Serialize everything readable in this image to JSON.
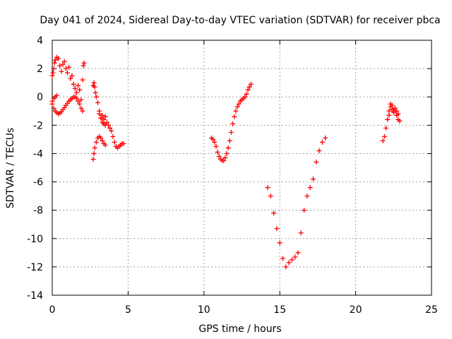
{
  "chart_data": {
    "type": "scatter",
    "title": "Day 041 of 2024, Sidereal Day-to-day VTEC variation (SDTVAR) for receiver pbca",
    "xlabel": "GPS time / hours",
    "ylabel": "SDTVAR / TECUs",
    "xlim": [
      0,
      25
    ],
    "ylim": [
      -14,
      4
    ],
    "xticks": [
      0,
      5,
      10,
      15,
      20,
      25
    ],
    "yticks": [
      4,
      2,
      0,
      -2,
      -4,
      -6,
      -8,
      -10,
      -12,
      -14
    ],
    "grid": true,
    "legend": "none",
    "marker": "plus",
    "color": "#ff0000",
    "segments": [
      {
        "x": [
          0.0,
          0.1,
          0.2,
          0.3,
          0.4,
          0.5,
          0.6,
          0.7,
          0.8,
          0.9,
          1.0,
          1.1,
          1.2,
          1.3,
          1.4,
          1.5,
          1.6,
          1.7,
          1.8,
          1.9,
          2.0
        ],
        "y": [
          -0.5,
          -0.8,
          -1.0,
          -1.1,
          -1.2,
          -1.15,
          -1.05,
          -0.9,
          -0.75,
          -0.6,
          -0.45,
          -0.3,
          -0.2,
          -0.1,
          0.0,
          0.0,
          -0.1,
          -0.3,
          -0.5,
          -0.8,
          -1.0
        ]
      },
      {
        "x": [
          0.0,
          0.05,
          0.1,
          0.15,
          0.2,
          0.3,
          0.4,
          0.5,
          0.6,
          0.7,
          0.8,
          0.9,
          1.0,
          1.1,
          1.2,
          1.3,
          1.4,
          1.5,
          1.6,
          1.7,
          1.8,
          1.9,
          2.0,
          2.05,
          2.1
        ],
        "y": [
          1.5,
          1.7,
          2.0,
          2.4,
          2.6,
          2.8,
          2.7,
          2.2,
          1.8,
          2.3,
          2.5,
          2.0,
          1.7,
          2.1,
          1.3,
          1.5,
          0.9,
          0.6,
          0.3,
          0.8,
          0.5,
          -0.2,
          1.2,
          2.2,
          2.4
        ]
      },
      {
        "x": [
          0.0,
          0.1,
          0.2,
          0.3
        ],
        "y": [
          -0.3,
          -0.1,
          0.0,
          0.1
        ]
      },
      {
        "x": [
          2.7,
          2.75,
          2.8,
          2.9,
          3.0,
          3.1,
          3.2,
          3.3,
          3.4,
          3.5
        ],
        "y": [
          -4.4,
          -4.0,
          -3.6,
          -3.2,
          -2.9,
          -2.8,
          -2.9,
          -3.1,
          -3.3,
          -3.4
        ]
      },
      {
        "x": [
          2.7,
          2.75,
          2.8,
          2.85,
          2.9,
          3.0,
          3.1,
          3.2,
          3.3,
          3.4,
          3.5,
          3.6,
          3.7,
          3.8,
          3.9,
          4.0,
          4.1,
          4.2,
          4.3,
          4.4,
          4.5,
          4.6,
          4.7
        ],
        "y": [
          0.8,
          1.0,
          0.7,
          0.3,
          0.0,
          -0.4,
          -1.0,
          -1.5,
          -1.8,
          -1.9,
          -2.0,
          -1.8,
          -2.0,
          -2.2,
          -2.4,
          -2.8,
          -3.2,
          -3.5,
          -3.6,
          -3.5,
          -3.4,
          -3.3,
          -3.3
        ]
      },
      {
        "x": [
          3.1,
          3.2,
          3.3,
          3.4,
          3.5
        ],
        "y": [
          -1.2,
          -1.5,
          -1.3,
          -1.6,
          -1.4
        ]
      },
      {
        "x": [
          10.5,
          10.6,
          10.7,
          10.8,
          10.9,
          11.0,
          11.1,
          11.2,
          11.3,
          11.4,
          11.5,
          11.6,
          11.7,
          11.8,
          11.9,
          12.0,
          12.1,
          12.2,
          12.3,
          12.4,
          12.5,
          12.6,
          12.7,
          12.8,
          12.9,
          13.0,
          13.1
        ],
        "y": [
          -2.9,
          -3.0,
          -3.2,
          -3.5,
          -3.9,
          -4.2,
          -4.4,
          -4.5,
          -4.5,
          -4.3,
          -4.0,
          -3.6,
          -3.1,
          -2.5,
          -1.9,
          -1.4,
          -1.0,
          -0.7,
          -0.5,
          -0.3,
          -0.2,
          -0.1,
          0.0,
          0.2,
          0.5,
          0.7,
          0.9
        ]
      },
      {
        "x": [
          14.2,
          14.4,
          14.6,
          14.8,
          15.0,
          15.2,
          15.4,
          15.6,
          15.8,
          16.0,
          16.2,
          16.4,
          16.6,
          16.8,
          17.0,
          17.2,
          17.4,
          17.6,
          17.8,
          18.0
        ],
        "y": [
          -6.4,
          -7.0,
          -8.2,
          -9.3,
          -10.3,
          -11.4,
          -12.0,
          -11.7,
          -11.5,
          -11.3,
          -11.0,
          -9.6,
          -8.0,
          -7.0,
          -6.4,
          -5.8,
          -4.6,
          -3.8,
          -3.2,
          -2.9
        ]
      },
      {
        "x": [
          21.8,
          21.9,
          22.0,
          22.1,
          22.2,
          22.3,
          22.4,
          22.5,
          22.6,
          22.7,
          22.8,
          22.9
        ],
        "y": [
          -3.1,
          -2.8,
          -2.2,
          -1.6,
          -1.0,
          -0.7,
          -0.6,
          -0.9,
          -1.0,
          -1.3,
          -1.6,
          -1.7
        ]
      },
      {
        "x": [
          22.2,
          22.3,
          22.4,
          22.5,
          22.6,
          22.7,
          22.8
        ],
        "y": [
          -1.3,
          -0.5,
          -0.9,
          -1.1,
          -0.8,
          -1.0,
          -1.2
        ]
      }
    ]
  }
}
